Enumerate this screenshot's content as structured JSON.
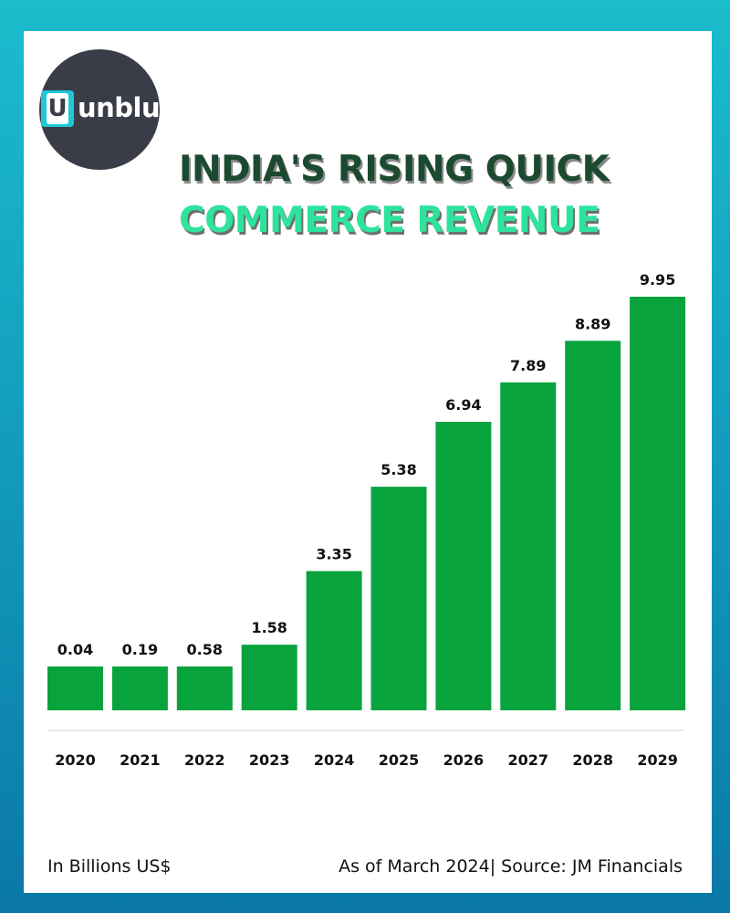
{
  "brand": {
    "logo_letter": "U",
    "logo_text": "unblue"
  },
  "title": {
    "line1": "INDIA'S RISING QUICK",
    "line2": "COMMERCE REVENUE"
  },
  "chart_data": {
    "type": "bar",
    "title": "INDIA'S RISING QUICK COMMERCE REVENUE",
    "xlabel": "",
    "ylabel": "In Billions US$",
    "categories": [
      "2020",
      "2021",
      "2022",
      "2023",
      "2024",
      "2025",
      "2026",
      "2027",
      "2028",
      "2029"
    ],
    "values": [
      0.04,
      0.19,
      0.58,
      1.58,
      3.35,
      5.38,
      6.94,
      7.89,
      8.89,
      9.95
    ],
    "value_labels": [
      "0.04",
      "0.19",
      "0.58",
      "1.58",
      "3.35",
      "5.38",
      "6.94",
      "7.89",
      "8.89",
      "9.95"
    ],
    "bar_color": "#08a33d",
    "grid": false,
    "legend": "none"
  },
  "footer": {
    "unit_note": "In Billions US$",
    "source_note": "As of March 2024| Source: JM Financials"
  },
  "colors": {
    "background_top": "#1bbccc",
    "background_bottom": "#0a78a6",
    "title_dark": "#1c4a30",
    "title_green": "#2ee39c"
  }
}
